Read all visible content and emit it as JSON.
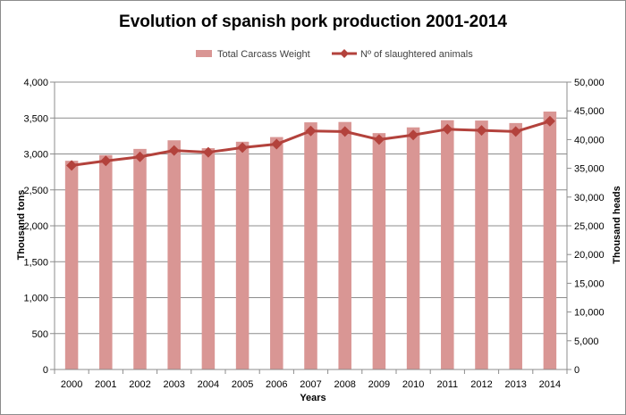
{
  "chart_data": {
    "type": "bar",
    "title": "Evolution of spanish pork production 2001-2014",
    "xlabel": "Years",
    "ylabel": "Thousand tons",
    "y2label": "Thousand heads",
    "categories": [
      "2000",
      "2001",
      "2002",
      "2003",
      "2004",
      "2005",
      "2006",
      "2007",
      "2008",
      "2009",
      "2010",
      "2011",
      "2012",
      "2013",
      "2014"
    ],
    "ylim": [
      0,
      4000
    ],
    "y2lim": [
      0,
      50000
    ],
    "y_ticks": [
      "0",
      "500",
      "1,000",
      "1,500",
      "2,000",
      "2,500",
      "3,000",
      "3,500",
      "4,000"
    ],
    "y2_ticks": [
      "0",
      "5,000",
      "10,000",
      "15,000",
      "20,000",
      "25,000",
      "30,000",
      "35,000",
      "40,000",
      "45,000",
      "50,000"
    ],
    "grid": true,
    "legend_position": "top",
    "series": [
      {
        "name": "Total Carcass Weight",
        "type": "bar",
        "axis": "left",
        "color": "#d99694",
        "values": [
          2905,
          2985,
          3070,
          3190,
          3080,
          3170,
          3235,
          3440,
          3445,
          3290,
          3370,
          3470,
          3465,
          3430,
          3590
        ]
      },
      {
        "name": "Nº of slaughtered animals",
        "type": "line",
        "axis": "right",
        "color": "#b3423c",
        "values": [
          35500,
          36300,
          37000,
          38100,
          37800,
          38600,
          39200,
          41500,
          41400,
          40000,
          40800,
          41800,
          41600,
          41400,
          43200
        ]
      }
    ]
  }
}
